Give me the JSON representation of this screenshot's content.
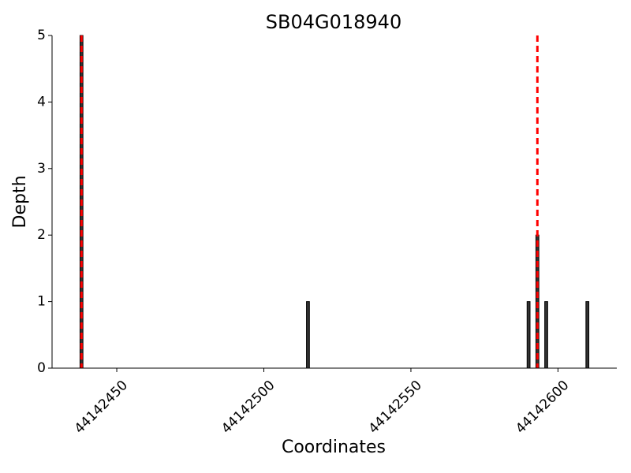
{
  "chart_data": {
    "type": "bar",
    "title": "SB04G018940",
    "xlabel": "Coordinates",
    "ylabel": "Depth",
    "x": [
      44142438,
      44142515,
      44142590,
      44142593,
      44142596,
      44142610
    ],
    "values": [
      5,
      1,
      1,
      2,
      1,
      1
    ],
    "bar_width": 1,
    "color": "#333333",
    "edgecolor": "#000000",
    "vlines": [
      44142438,
      44142593
    ],
    "vline_color": "#ff0000",
    "xlim": [
      44142428,
      44142620
    ],
    "xticks": [
      44142450,
      44142500,
      44142550,
      44142600
    ],
    "ylim": [
      0,
      5
    ],
    "yticks": [
      0,
      1,
      2,
      3,
      4,
      5
    ]
  }
}
